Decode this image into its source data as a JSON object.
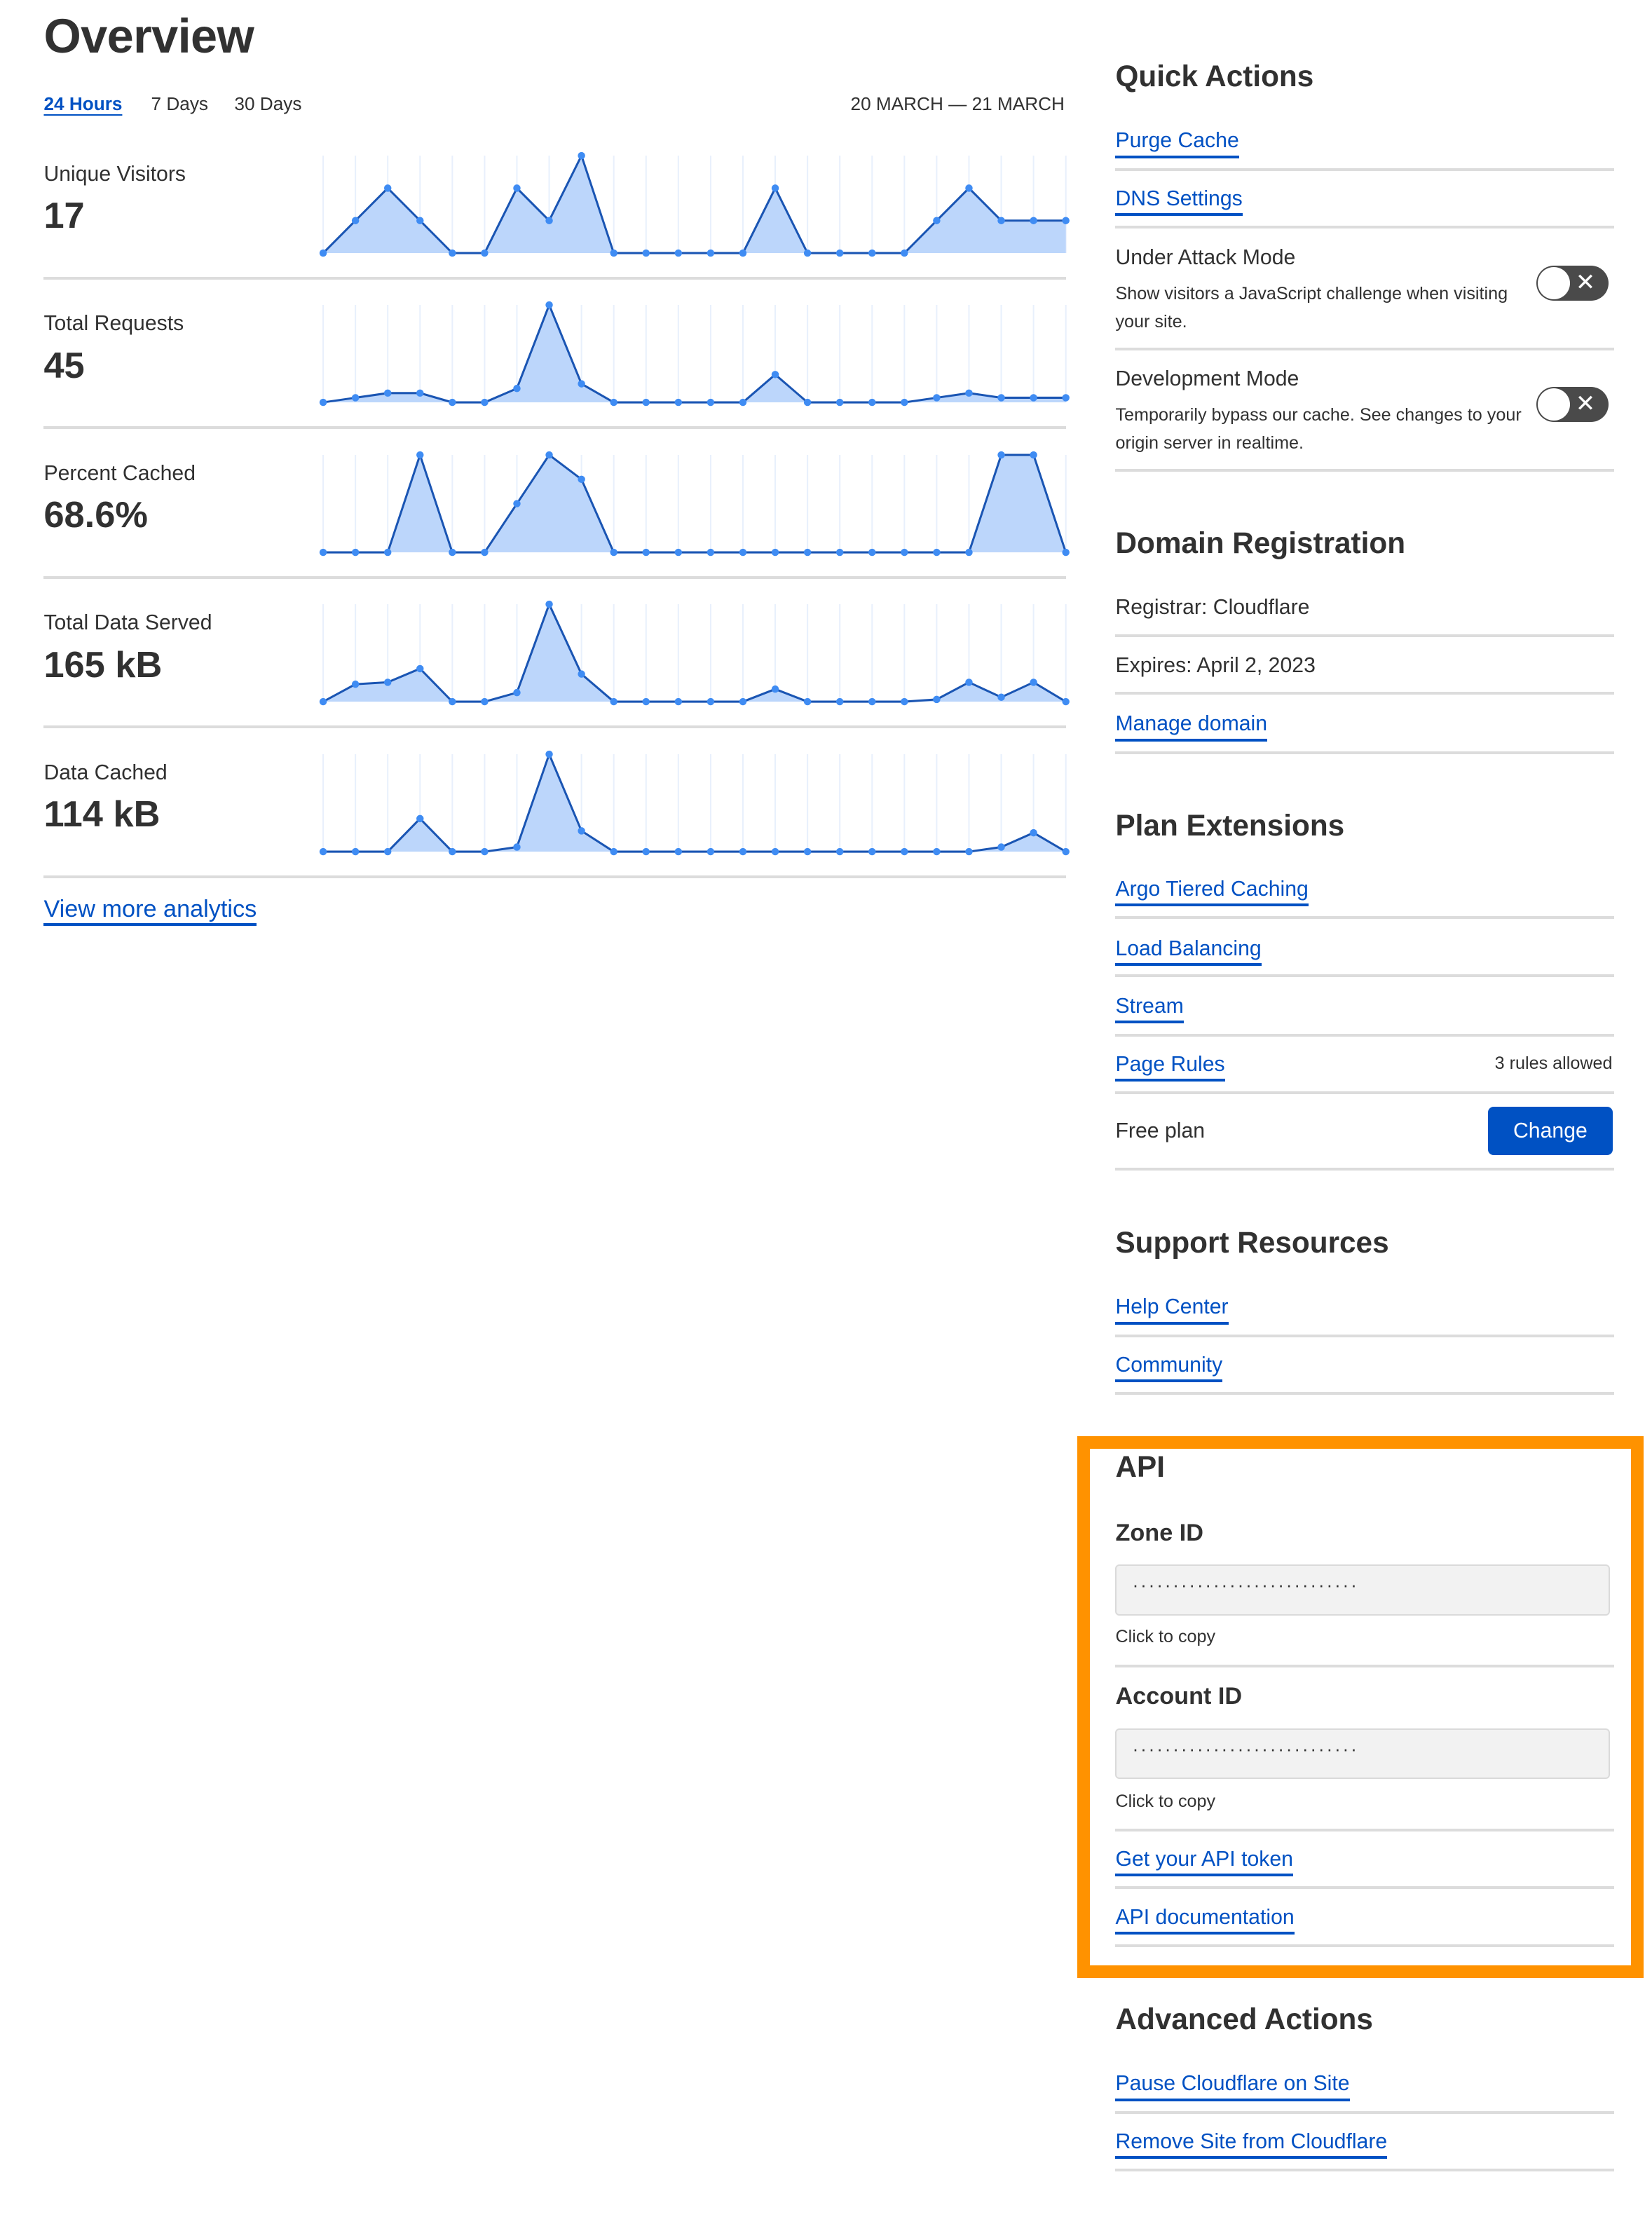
{
  "overview": {
    "title": "Overview",
    "tabs": [
      {
        "label": "24 Hours",
        "active": true
      },
      {
        "label": "7 Days",
        "active": false
      },
      {
        "label": "30 Days",
        "active": false
      }
    ],
    "date_range": "20 MARCH — 21 MARCH",
    "view_more": "View more analytics"
  },
  "chart_data": [
    {
      "type": "area",
      "label": "Unique Visitors",
      "value": "17",
      "values": [
        0,
        1,
        2,
        1,
        0,
        0,
        2,
        1,
        3,
        0,
        0,
        0,
        0,
        0,
        2,
        0,
        0,
        0,
        0,
        1,
        2,
        1,
        1,
        1
      ]
    },
    {
      "type": "area",
      "label": "Total Requests",
      "value": "45",
      "values": [
        0,
        1,
        2,
        2,
        0,
        0,
        3,
        21,
        4,
        0,
        0,
        0,
        0,
        0,
        6,
        0,
        0,
        0,
        0,
        1,
        2,
        1,
        1,
        1
      ]
    },
    {
      "type": "area",
      "label": "Percent Cached",
      "value": "68.6%",
      "values": [
        0,
        0,
        0,
        100,
        0,
        0,
        50,
        100,
        75,
        0,
        0,
        0,
        0,
        0,
        0,
        0,
        0,
        0,
        0,
        0,
        0,
        100,
        100,
        0
      ]
    },
    {
      "type": "area",
      "label": "Total Data Served",
      "value": "165 kB",
      "values": [
        0,
        11,
        12.2,
        20.8,
        0,
        0,
        5.7,
        61.4,
        17.4,
        0,
        0,
        0,
        0,
        0,
        7.9,
        0,
        0,
        0,
        0,
        1.4,
        12.2,
        2.8,
        12.2,
        0
      ]
    },
    {
      "type": "area",
      "label": "Data Cached",
      "value": "114 kB",
      "values": [
        0,
        0,
        0,
        21,
        0,
        0,
        2.9,
        61.9,
        13.2,
        0,
        0,
        0,
        0,
        0,
        0,
        0,
        0,
        0,
        0,
        0,
        0,
        2.9,
        12,
        0
      ]
    }
  ],
  "colors": {
    "link": "#0051c3",
    "fill": "#bcd6fb",
    "line": "#1a55b3",
    "dot": "#3f8cf3",
    "highlight": "#ff9200"
  },
  "quick_actions": {
    "title": "Quick Actions",
    "purge_cache": "Purge Cache",
    "dns_settings": "DNS Settings",
    "under_attack": {
      "title": "Under Attack Mode",
      "desc": "Show visitors a JavaScript challenge when visiting your site.",
      "enabled": false,
      "icon": "x-icon",
      "glyph": "✕"
    },
    "dev_mode": {
      "title": "Development Mode",
      "desc": "Temporarily bypass our cache. See changes to your origin server in realtime.",
      "enabled": false,
      "icon": "x-icon",
      "glyph": "✕"
    }
  },
  "domain": {
    "title": "Domain Registration",
    "registrar": "Registrar: Cloudflare",
    "expires": "Expires: April 2, 2023",
    "manage": "Manage domain"
  },
  "plan": {
    "title": "Plan Extensions",
    "argo": "Argo Tiered Caching",
    "load_balancing": "Load Balancing",
    "stream": "Stream",
    "page_rules": "Page Rules",
    "page_rules_note": "3 rules allowed",
    "free_plan": "Free plan",
    "change": "Change"
  },
  "support": {
    "title": "Support Resources",
    "help": "Help Center",
    "community": "Community"
  },
  "api": {
    "title": "API",
    "zone_label": "Zone ID",
    "zone_value": "····························",
    "account_label": "Account ID",
    "account_value": "····························",
    "copy_hint": "Click to copy",
    "token": "Get your API token",
    "docs": "API documentation"
  },
  "advanced": {
    "title": "Advanced Actions",
    "pause": "Pause Cloudflare on Site",
    "remove": "Remove Site from Cloudflare"
  }
}
